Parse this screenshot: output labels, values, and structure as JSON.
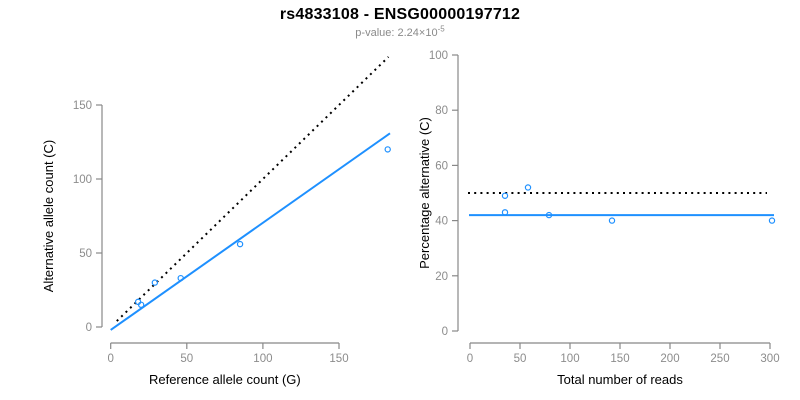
{
  "header": {
    "title": "rs4833108 - ENSG00000197712",
    "pvalue_prefix": "p-value: 2.24×10",
    "pvalue_exponent": "-5"
  },
  "colors": {
    "accent_blue": "#1E90FF",
    "dotted_black": "#000000",
    "axis_gray": "#888888",
    "tick_text_gray": "#8c8c8c",
    "axis_label_black": "#000000",
    "subtitle_gray": "#8a8a8a",
    "background": "#ffffff"
  },
  "chart_data": [
    {
      "type": "scatter",
      "name": "allele-counts-scatter",
      "title": "",
      "xlabel": "Reference allele count (G)",
      "ylabel": "Alternative allele count (C)",
      "xticks": [
        0,
        50,
        100,
        150
      ],
      "yticks": [
        0,
        50,
        100,
        150
      ],
      "xlim": [
        0,
        185
      ],
      "ylim": [
        0,
        185
      ],
      "grid": false,
      "legend": false,
      "point_style": "open-circle",
      "points": [
        [
          18,
          17
        ],
        [
          20,
          15
        ],
        [
          29,
          30
        ],
        [
          46,
          33
        ],
        [
          85,
          56
        ],
        [
          182,
          120
        ]
      ],
      "lines": [
        {
          "name": "fitted-ratio-line",
          "style": "solid",
          "color_key": "accent_blue",
          "slope": 0.724,
          "intercept": -2,
          "x_range": [
            0,
            183.5
          ]
        },
        {
          "name": "identity-line",
          "style": "dotted",
          "color_key": "dotted_black",
          "slope": 1,
          "intercept": 0,
          "x_range": [
            4,
            182.5
          ]
        }
      ]
    },
    {
      "type": "scatter",
      "name": "percentage-alternative-scatter",
      "title": "",
      "xlabel": "Total number of reads",
      "ylabel": "Percentage alternative (C)",
      "xticks": [
        0,
        50,
        100,
        150,
        200,
        250,
        300
      ],
      "yticks": [
        0,
        20,
        40,
        60,
        80,
        100
      ],
      "xlim": [
        0,
        305
      ],
      "ylim": [
        0,
        100
      ],
      "grid": false,
      "legend": false,
      "point_style": "open-circle",
      "points": [
        [
          35,
          49
        ],
        [
          35,
          43
        ],
        [
          58,
          52
        ],
        [
          79,
          42
        ],
        [
          142,
          40
        ],
        [
          302,
          40
        ]
      ],
      "lines": [
        {
          "name": "mean-percentage-line",
          "style": "solid",
          "color_key": "accent_blue",
          "y": 42,
          "x_range": [
            -1,
            304
          ]
        },
        {
          "name": "fifty-percent-line",
          "style": "dotted",
          "color_key": "dotted_black",
          "y": 50,
          "x_range": [
            -2,
            297
          ]
        }
      ]
    }
  ]
}
